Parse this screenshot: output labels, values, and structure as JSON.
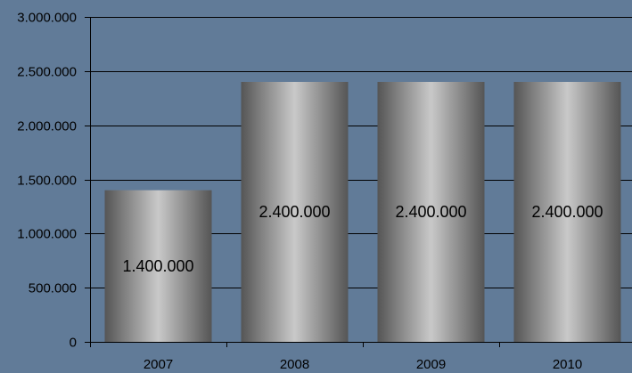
{
  "chart_data": {
    "type": "bar",
    "categories": [
      "2007",
      "2008",
      "2009",
      "2010"
    ],
    "values": [
      1400000,
      2400000,
      2400000,
      2400000
    ],
    "data_labels": [
      "1.400.000",
      "2.400.000",
      "2.400.000",
      "2.400.000"
    ],
    "ylim": [
      0,
      3000000
    ],
    "yticks": [
      0,
      500000,
      1000000,
      1500000,
      2000000,
      2500000,
      3000000
    ],
    "ytick_labels": [
      "0",
      "500.000",
      "1.000.000",
      "1.500.000",
      "2.000.000",
      "2.500.000",
      "3.000.000"
    ],
    "title": "",
    "xlabel": "",
    "ylabel": "",
    "grid": true,
    "legend": "none",
    "colors": {
      "background": "#617b98",
      "gridline": "#000000",
      "bar_edge": "#555555",
      "bar_center": "#c9c9c9",
      "text": "#000000"
    }
  }
}
